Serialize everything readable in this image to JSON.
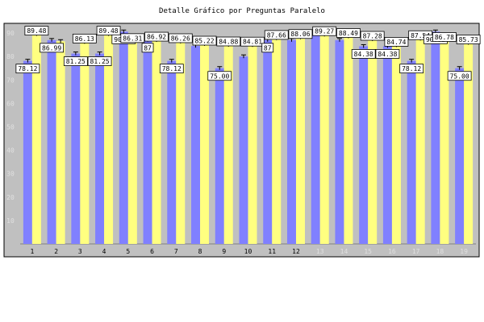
{
  "chart_data": {
    "type": "bar",
    "title": "Detalle Gráfico por Preguntas Paralelo",
    "xlabel": "",
    "ylabel": "",
    "ylim": [
      0,
      90
    ],
    "yticks": [
      10,
      20,
      30,
      40,
      50,
      60,
      70,
      80,
      90
    ],
    "grid": false,
    "legend": "none",
    "categories": [
      "1",
      "2",
      "3",
      "4",
      "5",
      "6",
      "7",
      "8",
      "9",
      "10",
      "11",
      "12",
      "13",
      "14",
      "15",
      "16",
      "17",
      "18",
      "19"
    ],
    "series": [
      {
        "color": "#8080ff",
        "values": [
          78.12,
          86.99,
          81.25,
          81.25,
          90.62,
          87.0,
          78.12,
          84.5,
          75.0,
          80.0,
          87.0,
          87.0,
          90.62,
          87.0,
          84.38,
          84.38,
          78.12,
          90.62,
          75.0
        ],
        "labels": [
          "78.12",
          "86.99",
          "81.25",
          "81.25",
          "90.62",
          "87",
          "78.12",
          "",
          "75.00",
          "",
          "87",
          "",
          "",
          "",
          "84.38",
          "84.38",
          "78.12",
          "90.62",
          "75.00"
        ]
      },
      {
        "color": "#ffff80",
        "values": [
          89.48,
          86.5,
          86.13,
          89.48,
          86.31,
          86.92,
          86.26,
          85.22,
          84.88,
          84.81,
          87.66,
          88.06,
          89.27,
          88.49,
          87.28,
          84.74,
          87.54,
          86.78,
          85.73
        ],
        "labels": [
          "89.48",
          "",
          "86.13",
          "89.48",
          "86.31",
          "86.92",
          "86.26",
          "85.22",
          "84.88",
          "84.81",
          "87.66",
          "88.06",
          "89.27",
          "88.49",
          "87.28",
          "84.74",
          "87.54",
          "86.78",
          "85.73"
        ]
      }
    ],
    "colors": {
      "plot_background": "#c0c0c0",
      "axis_labels_muted": "#e0e0e0"
    }
  }
}
